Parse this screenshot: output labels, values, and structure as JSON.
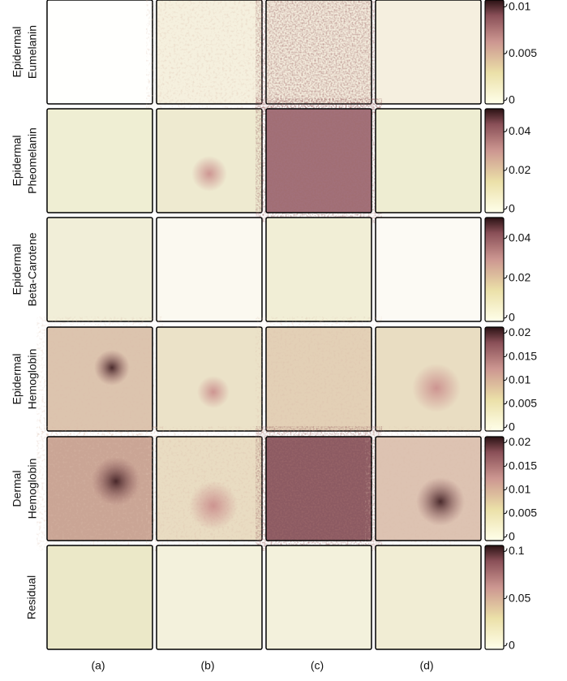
{
  "rows": [
    {
      "label": [
        "Epidermal",
        "Eumelanin"
      ],
      "colorbar_ticks": [
        0,
        0.005,
        0.01
      ]
    },
    {
      "label": [
        "Epidermal",
        "Pheomelanin"
      ],
      "colorbar_ticks": [
        0,
        0.02,
        0.04
      ]
    },
    {
      "label": [
        "Epidermal",
        "Beta-Carotene"
      ],
      "colorbar_ticks": [
        0,
        0.02,
        0.04
      ]
    },
    {
      "label": [
        "Epidermal",
        "Hemoglobin"
      ],
      "colorbar_ticks": [
        0,
        0.005,
        0.01,
        0.015,
        0.02
      ]
    },
    {
      "label": [
        "Dermal",
        "Hemoglobin"
      ],
      "colorbar_ticks": [
        0,
        0.005,
        0.01,
        0.015,
        0.02
      ]
    },
    {
      "label": [
        "Residual"
      ],
      "colorbar_ticks": [
        0,
        0.05,
        0.1
      ]
    }
  ],
  "columns": [
    "(a)",
    "(b)",
    "(c)",
    "(d)"
  ]
}
